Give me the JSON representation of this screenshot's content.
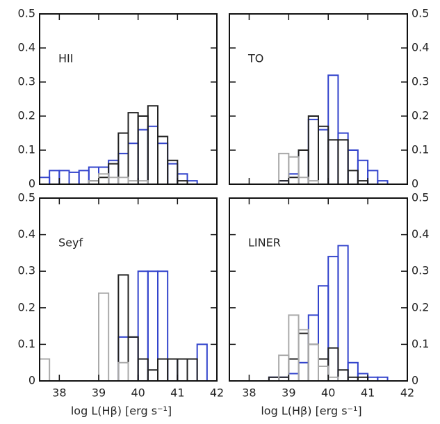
{
  "chart_data": [
    {
      "type": "histogram",
      "label": "HII",
      "bins": [
        37.5,
        37.75,
        38,
        38.25,
        38.5,
        38.75,
        39,
        39.25,
        39.5,
        39.75,
        40,
        40.25,
        40.5,
        40.75,
        41,
        41.25,
        41.5,
        41.75,
        42
      ],
      "series": [
        {
          "color": "#3344cc",
          "values": [
            0.02,
            0.04,
            0.04,
            0.035,
            0.04,
            0.05,
            0.05,
            0.07,
            0.09,
            0.12,
            0.16,
            0.17,
            0.12,
            0.06,
            0.03,
            0.01,
            0,
            0
          ]
        },
        {
          "color": "#222222",
          "values": [
            0,
            0,
            0,
            0,
            0,
            0.01,
            0.02,
            0.06,
            0.15,
            0.21,
            0.2,
            0.23,
            0.14,
            0.07,
            0.01,
            0,
            0,
            0
          ]
        },
        {
          "color": "#aaaaaa",
          "values": [
            0,
            0,
            0,
            0,
            0,
            0.01,
            0.03,
            0.02,
            0.02,
            0.01,
            0.01,
            0,
            0,
            0,
            0,
            0,
            0,
            0
          ]
        }
      ],
      "xlim": [
        37.5,
        42
      ],
      "ylim": [
        0,
        0.5
      ],
      "xticks": [
        38,
        39,
        40,
        41,
        42
      ],
      "yticks": [
        0,
        0.1,
        0.2,
        0.3,
        0.4,
        0.5
      ]
    },
    {
      "type": "histogram",
      "label": "TO",
      "bins": [
        37.5,
        37.75,
        38,
        38.25,
        38.5,
        38.75,
        39,
        39.25,
        39.5,
        39.75,
        40,
        40.25,
        40.5,
        40.75,
        41,
        41.25,
        41.5,
        41.75,
        42
      ],
      "series": [
        {
          "color": "#3344cc",
          "values": [
            0,
            0,
            0,
            0,
            0,
            0.01,
            0.03,
            0.1,
            0.19,
            0.16,
            0.32,
            0.15,
            0.1,
            0.07,
            0.04,
            0.01,
            0,
            0
          ]
        },
        {
          "color": "#222222",
          "values": [
            0,
            0,
            0,
            0,
            0,
            0.01,
            0.02,
            0.1,
            0.2,
            0.17,
            0.13,
            0.13,
            0.04,
            0.01,
            0,
            0,
            0,
            0
          ]
        },
        {
          "color": "#aaaaaa",
          "values": [
            0,
            0,
            0,
            0,
            0,
            0.09,
            0.08,
            0.02,
            0.01,
            0,
            0,
            0,
            0,
            0,
            0,
            0,
            0,
            0
          ]
        }
      ],
      "xlim": [
        37.5,
        42
      ],
      "ylim": [
        0,
        0.5
      ],
      "xticks": [
        38,
        39,
        40,
        41,
        42
      ],
      "yticks": [
        0,
        0.1,
        0.2,
        0.3,
        0.4,
        0.5
      ]
    },
    {
      "type": "histogram",
      "label": "Seyf",
      "xlabel": "log L(Hβ)  [erg s⁻¹]",
      "bins": [
        37.5,
        37.75,
        38,
        38.25,
        38.5,
        38.75,
        39,
        39.25,
        39.5,
        39.75,
        40,
        40.25,
        40.5,
        40.75,
        41,
        41.25,
        41.5,
        41.75,
        42
      ],
      "series": [
        {
          "color": "#3344cc",
          "values": [
            0,
            0,
            0,
            0,
            0,
            0,
            0,
            0,
            0.12,
            0.12,
            0.3,
            0.3,
            0.3,
            0.06,
            0.06,
            0,
            0.1,
            0
          ]
        },
        {
          "color": "#222222",
          "values": [
            0,
            0,
            0,
            0,
            0,
            0,
            0,
            0,
            0.29,
            0.12,
            0.06,
            0.03,
            0.06,
            0.06,
            0.06,
            0.06,
            0,
            0
          ]
        },
        {
          "color": "#aaaaaa",
          "values": [
            0.06,
            0,
            0,
            0,
            0,
            0,
            0.24,
            0,
            0.05,
            0,
            0,
            0,
            0,
            0,
            0,
            0,
            0,
            0
          ]
        }
      ],
      "xlim": [
        37.5,
        42
      ],
      "ylim": [
        0,
        0.5
      ],
      "xticks": [
        38,
        39,
        40,
        41,
        42
      ],
      "yticks": [
        0,
        0.1,
        0.2,
        0.3,
        0.4,
        0.5
      ]
    },
    {
      "type": "histogram",
      "label": "LINER",
      "xlabel": "log L(Hβ)  [erg s⁻¹]",
      "bins": [
        37.5,
        37.75,
        38,
        38.25,
        38.5,
        38.75,
        39,
        39.25,
        39.5,
        39.75,
        40,
        40.25,
        40.5,
        40.75,
        41,
        41.25,
        41.5,
        41.75,
        42
      ],
      "series": [
        {
          "color": "#3344cc",
          "values": [
            0,
            0,
            0,
            0,
            0.01,
            0.01,
            0.02,
            0.05,
            0.18,
            0.26,
            0.34,
            0.37,
            0.05,
            0.02,
            0.01,
            0.01,
            0,
            0
          ]
        },
        {
          "color": "#222222",
          "values": [
            0,
            0,
            0,
            0,
            0.01,
            0.01,
            0.06,
            0.13,
            0.1,
            0.06,
            0.09,
            0.03,
            0.01,
            0.01,
            0,
            0,
            0,
            0
          ]
        },
        {
          "color": "#aaaaaa",
          "values": [
            0,
            0,
            0,
            0,
            0,
            0.07,
            0.18,
            0.14,
            0.1,
            0.04,
            0.01,
            0,
            0,
            0,
            0,
            0,
            0,
            0
          ]
        }
      ],
      "xlim": [
        37.5,
        42
      ],
      "ylim": [
        0,
        0.5
      ],
      "xticks": [
        38,
        39,
        40,
        41,
        42
      ],
      "yticks": [
        0,
        0.1,
        0.2,
        0.3,
        0.4,
        0.5
      ]
    }
  ]
}
